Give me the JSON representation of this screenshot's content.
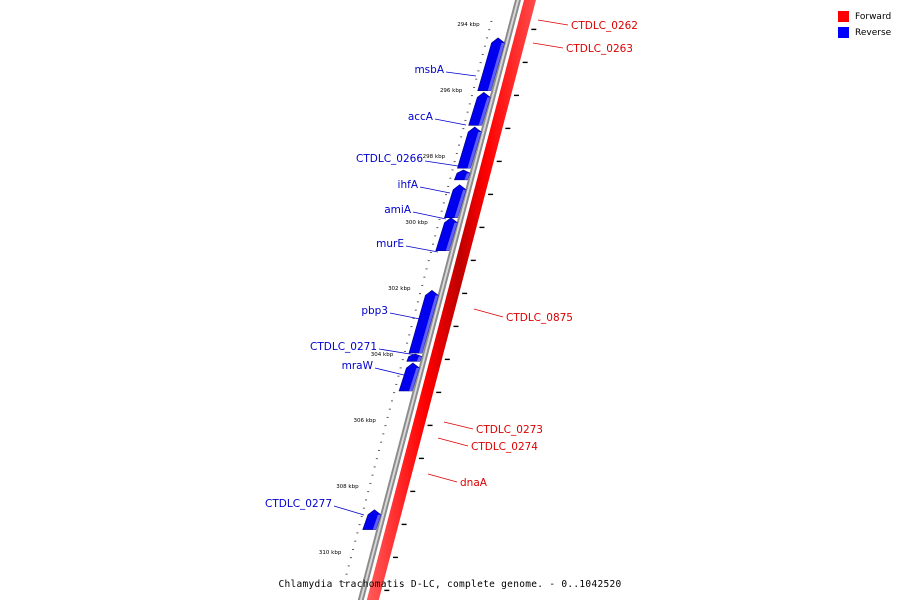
{
  "legend": {
    "items": [
      {
        "label": "Forward",
        "color": "#ff0000"
      },
      {
        "label": "Reverse",
        "color": "#0000ff"
      }
    ]
  },
  "caption": "Chlamydia trachomatis D-LC, complete genome. - 0..1042520",
  "axis_labels": [
    "294 kbp",
    "296 kbp",
    "298 kbp",
    "300 kbp",
    "302 kbp",
    "304 kbp",
    "306 kbp",
    "308 kbp",
    "310 kbp"
  ],
  "genes": {
    "reverse": [
      {
        "name": "msbA",
        "start_kbp": 294.3,
        "end_kbp": 295.9
      },
      {
        "name": "accA",
        "start_kbp": 295.95,
        "end_kbp": 296.95
      },
      {
        "name": "CTDLC_0266",
        "start_kbp": 297.0,
        "end_kbp": 298.25
      },
      {
        "name": "ihfA",
        "start_kbp": 298.3,
        "end_kbp": 298.6
      },
      {
        "name": "amiA",
        "start_kbp": 298.75,
        "end_kbp": 299.75
      },
      {
        "name": "murE",
        "start_kbp": 299.75,
        "end_kbp": 300.75
      },
      {
        "name": "pbp3",
        "start_kbp": 301.95,
        "end_kbp": 303.85
      },
      {
        "name": "CTDLC_0271",
        "start_kbp": 303.88,
        "end_kbp": 304.1
      },
      {
        "name": "mraW",
        "start_kbp": 304.15,
        "end_kbp": 305.0
      },
      {
        "name": "CTDLC_0277",
        "start_kbp": 308.6,
        "end_kbp": 309.2
      }
    ],
    "forward": [
      {
        "name": "CTDLC_0262"
      },
      {
        "name": "CTDLC_0263"
      },
      {
        "name": "CTDLC_0875"
      },
      {
        "name": "CTDLC_0273"
      },
      {
        "name": "CTDLC_0274"
      },
      {
        "name": "dnaA"
      }
    ]
  }
}
